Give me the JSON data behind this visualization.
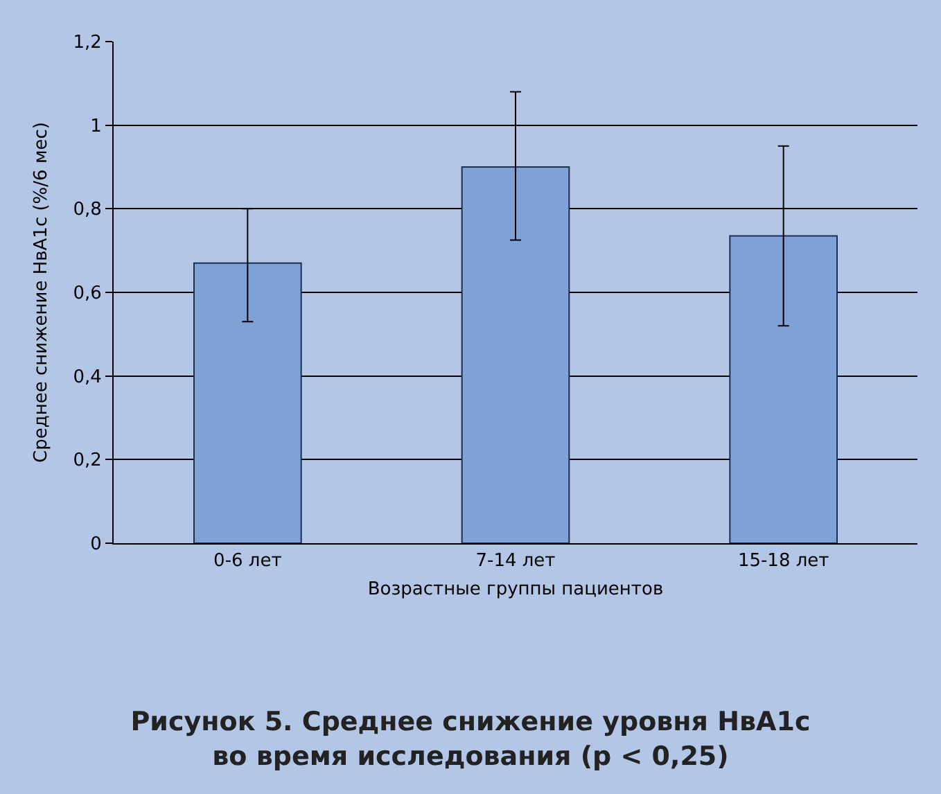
{
  "chart_data": {
    "type": "bar",
    "title": "Рисунок 5. Среднее снижение уровня HвA1c\nво время исследования (p < 0,25)",
    "xlabel": "Возрастные группы пациентов",
    "ylabel": "Среднее снижение HвA1c (%/6 мес)",
    "categories": [
      "0-6 лет",
      "7-14 лет",
      "15-18 лет"
    ],
    "values": [
      0.67,
      0.9,
      0.735
    ],
    "color": "#7ea1d6",
    "errors": [
      [
        0.53,
        0.8
      ],
      [
        0.725,
        1.08
      ],
      [
        0.52,
        0.95
      ]
    ],
    "ylim": [
      0,
      1.2
    ],
    "yticks": [
      0,
      {
        "value": 0.2,
        "label": "0,2"
      },
      {
        "value": 0.4,
        "label": "0,4"
      },
      {
        "value": 0.6,
        "label": "0,6"
      },
      {
        "value": 0.8,
        "label": "0,8"
      },
      1,
      {
        "value": 1.2,
        "label": "1,2"
      }
    ],
    "grid": "y",
    "legend": false
  }
}
